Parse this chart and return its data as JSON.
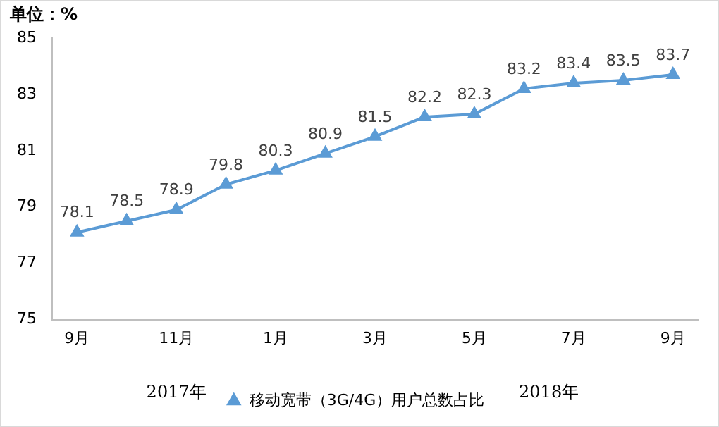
{
  "chart_data": {
    "type": "line",
    "ylabel": "单位：%",
    "categories": [
      "9月",
      null,
      "11月",
      null,
      "1月",
      null,
      "3月",
      null,
      "5月",
      null,
      "7月",
      null,
      "9月"
    ],
    "series": [
      {
        "name": "移动宽带（3G/4G）用户总数占比",
        "color": "#5b9bd5",
        "values": [
          78.1,
          78.5,
          78.9,
          79.8,
          80.3,
          80.9,
          81.5,
          82.2,
          82.3,
          83.2,
          83.4,
          83.5,
          83.7
        ]
      }
    ],
    "ylim": [
      75,
      85
    ],
    "yticks": [
      75,
      77,
      79,
      81,
      83,
      85
    ],
    "grid": false,
    "legend": "bottom",
    "marker": "triangle",
    "line_style": "solid",
    "data_labels": true,
    "annotations": [
      "2017年",
      "2018年"
    ]
  }
}
